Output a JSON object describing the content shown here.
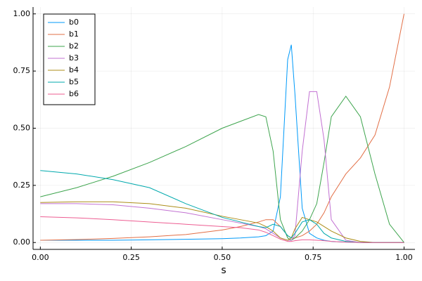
{
  "chart_data": {
    "type": "line",
    "xlabel": "s",
    "x": [
      0,
      0.1,
      0.2,
      0.3,
      0.4,
      0.5,
      0.55,
      0.6,
      0.62,
      0.64,
      0.66,
      0.68,
      0.69,
      0.7,
      0.72,
      0.74,
      0.76,
      0.78,
      0.8,
      0.84,
      0.88,
      0.92,
      0.96,
      1.0
    ],
    "series": [
      {
        "name": "b0",
        "color": "#009af9",
        "values": [
          0.01,
          0.01,
          0.01,
          0.012,
          0.014,
          0.017,
          0.02,
          0.025,
          0.03,
          0.05,
          0.2,
          0.8,
          0.865,
          0.65,
          0.15,
          0.04,
          0.02,
          0.01,
          0.005,
          0.002,
          0,
          0,
          0,
          0
        ]
      },
      {
        "name": "b1",
        "color": "#e26f46",
        "values": [
          0.01,
          0.013,
          0.018,
          0.025,
          0.035,
          0.055,
          0.07,
          0.09,
          0.1,
          0.1,
          0.07,
          0.03,
          0.02,
          0.02,
          0.03,
          0.05,
          0.08,
          0.13,
          0.2,
          0.3,
          0.37,
          0.47,
          0.68,
          1.0
        ]
      },
      {
        "name": "b2",
        "color": "#3da44d",
        "values": [
          0.2,
          0.24,
          0.29,
          0.35,
          0.42,
          0.5,
          0.53,
          0.56,
          0.55,
          0.4,
          0.1,
          0.02,
          0.01,
          0.02,
          0.05,
          0.1,
          0.17,
          0.35,
          0.55,
          0.64,
          0.55,
          0.3,
          0.08,
          0
        ]
      },
      {
        "name": "b3",
        "color": "#c271d2",
        "values": [
          0.17,
          0.17,
          0.165,
          0.15,
          0.13,
          0.1,
          0.085,
          0.07,
          0.06,
          0.04,
          0.02,
          0.01,
          0.01,
          0.03,
          0.4,
          0.66,
          0.66,
          0.45,
          0.1,
          0.01,
          0,
          0,
          0,
          0
        ]
      },
      {
        "name": "b4",
        "color": "#ac8d18",
        "values": [
          0.175,
          0.178,
          0.178,
          0.17,
          0.15,
          0.115,
          0.1,
          0.085,
          0.07,
          0.05,
          0.02,
          0.01,
          0.02,
          0.06,
          0.11,
          0.1,
          0.09,
          0.07,
          0.05,
          0.02,
          0.005,
          0,
          0,
          0
        ]
      },
      {
        "name": "b5",
        "color": "#00a9ad",
        "values": [
          0.315,
          0.3,
          0.275,
          0.24,
          0.17,
          0.11,
          0.09,
          0.07,
          0.065,
          0.08,
          0.07,
          0.03,
          0.02,
          0.04,
          0.09,
          0.1,
          0.08,
          0.04,
          0.02,
          0.005,
          0,
          0,
          0,
          0
        ]
      },
      {
        "name": "b6",
        "color": "#ed5d92",
        "values": [
          0.113,
          0.108,
          0.1,
          0.09,
          0.08,
          0.07,
          0.065,
          0.055,
          0.045,
          0.03,
          0.015,
          0.005,
          0.005,
          0.008,
          0.012,
          0.012,
          0.01,
          0.008,
          0.005,
          0.002,
          0,
          0,
          0,
          0
        ]
      }
    ],
    "xlim": [
      -0.02,
      1.03
    ],
    "ylim": [
      -0.03,
      1.03
    ],
    "xticks": [
      {
        "value": 0,
        "label": "0.00"
      },
      {
        "value": 0.25,
        "label": "0.25"
      },
      {
        "value": 0.5,
        "label": "0.50"
      },
      {
        "value": 0.75,
        "label": "0.75"
      },
      {
        "value": 1,
        "label": "1.00"
      }
    ],
    "yticks": [
      {
        "value": 0,
        "label": "0.00"
      },
      {
        "value": 0.25,
        "label": "0.25"
      },
      {
        "value": 0.5,
        "label": "0.50"
      },
      {
        "value": 0.75,
        "label": "0.75"
      },
      {
        "value": 1,
        "label": "1.00"
      }
    ],
    "grid": true,
    "legend": "top-left"
  }
}
